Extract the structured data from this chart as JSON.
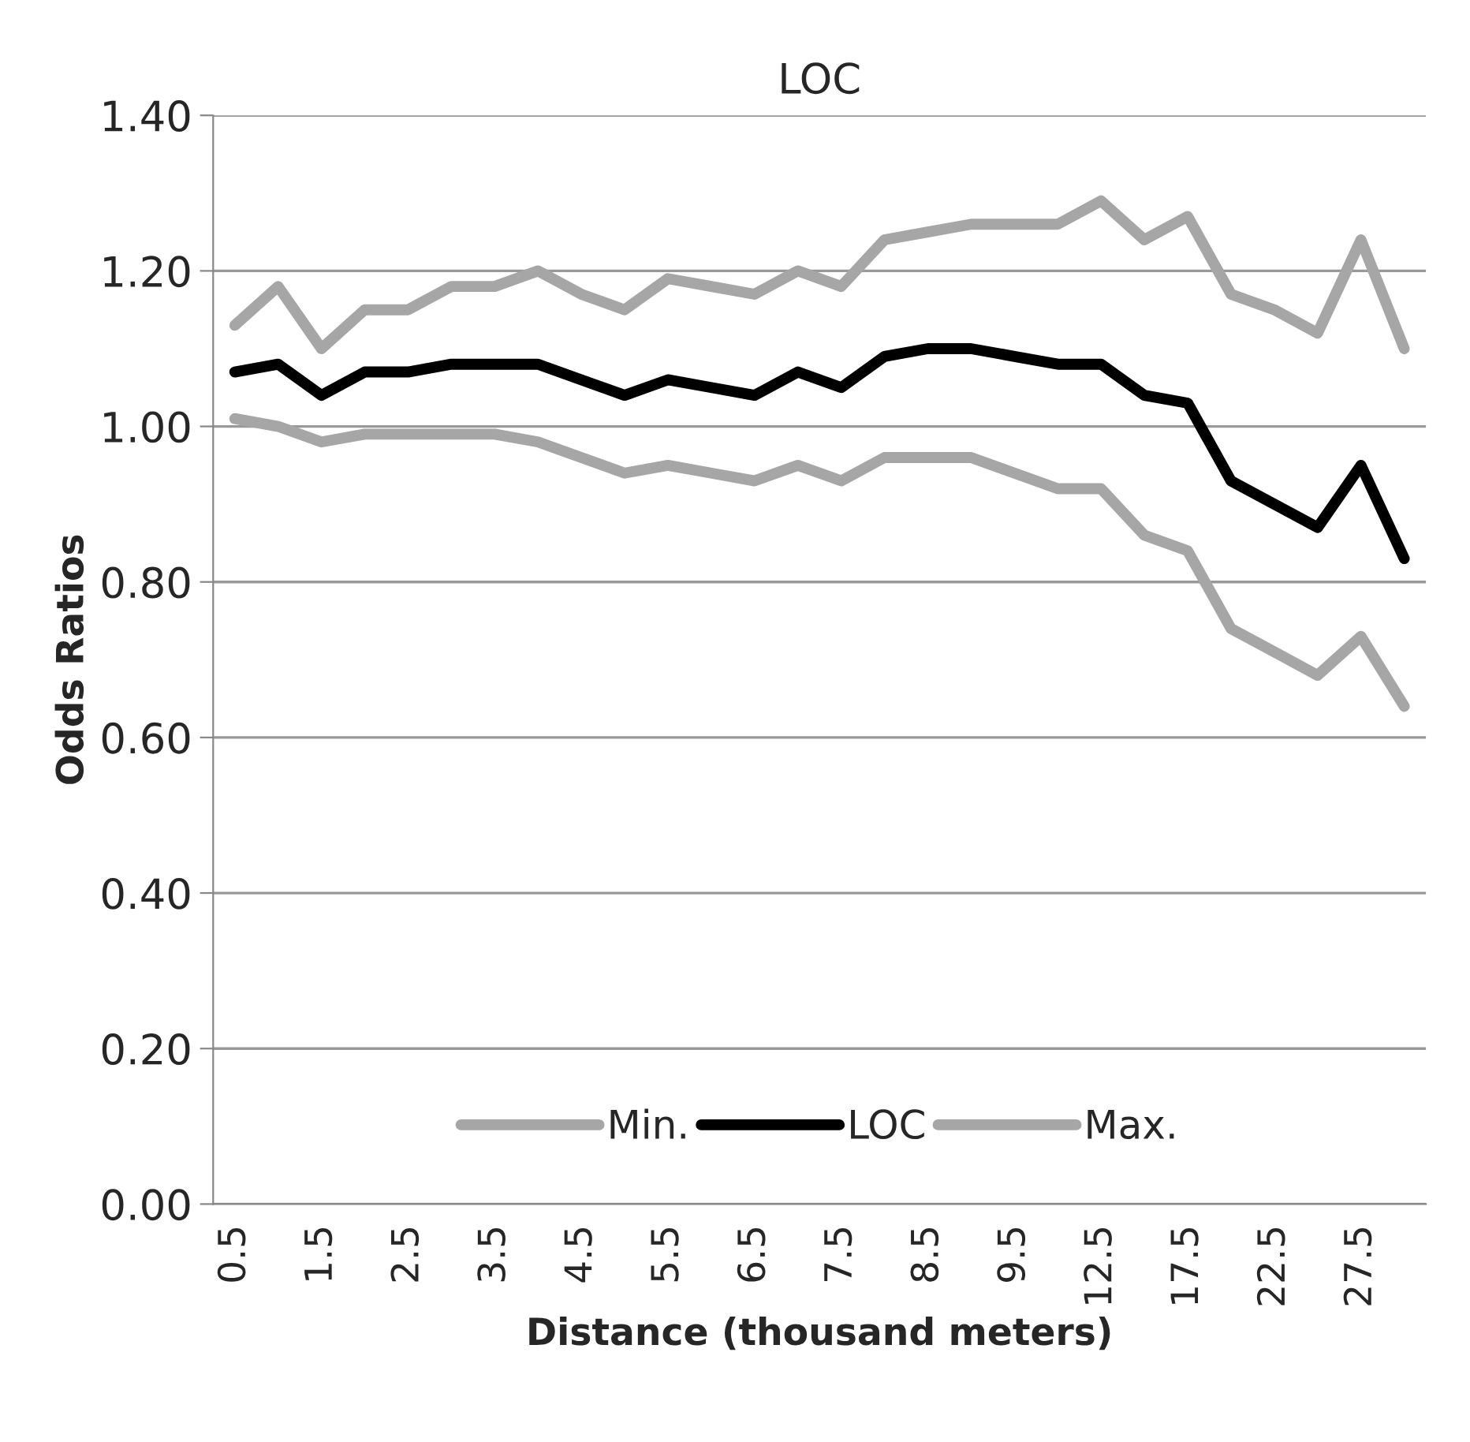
{
  "chart_data": {
    "type": "line",
    "title": "LOC",
    "xlabel": "Distance (thousand meters)",
    "ylabel": "Odds Ratios",
    "categories": [
      "0.5",
      null,
      "1.5",
      null,
      "2.5",
      null,
      "3.5",
      null,
      "4.5",
      null,
      "5.5",
      null,
      "6.5",
      null,
      "7.5",
      null,
      "8.5",
      null,
      "9.5",
      null,
      "12.5",
      null,
      "17.5",
      null,
      "22.5",
      null,
      "27.5",
      null
    ],
    "series": [
      {
        "name": "Min.",
        "color": "#a6a6a6",
        "values": [
          1.01,
          1.0,
          0.98,
          0.99,
          0.99,
          0.99,
          0.99,
          0.98,
          0.96,
          0.94,
          0.95,
          0.94,
          0.93,
          0.95,
          0.93,
          0.96,
          0.96,
          0.96,
          0.94,
          0.92,
          0.92,
          0.86,
          0.84,
          0.74,
          0.71,
          0.68,
          0.73,
          0.64
        ]
      },
      {
        "name": "LOC",
        "color": "#000000",
        "values": [
          1.07,
          1.08,
          1.04,
          1.07,
          1.07,
          1.08,
          1.08,
          1.08,
          1.06,
          1.04,
          1.06,
          1.05,
          1.04,
          1.07,
          1.05,
          1.09,
          1.1,
          1.1,
          1.09,
          1.08,
          1.08,
          1.04,
          1.03,
          0.93,
          0.9,
          0.87,
          0.95,
          0.83
        ]
      },
      {
        "name": "Max.",
        "color": "#a6a6a6",
        "values": [
          1.13,
          1.18,
          1.1,
          1.15,
          1.15,
          1.18,
          1.18,
          1.2,
          1.17,
          1.15,
          1.19,
          1.18,
          1.17,
          1.2,
          1.18,
          1.24,
          1.25,
          1.26,
          1.26,
          1.26,
          1.29,
          1.24,
          1.27,
          1.17,
          1.15,
          1.12,
          1.24,
          1.1
        ]
      }
    ],
    "ylim": [
      0,
      1.4
    ],
    "yticks": [
      {
        "value": 0,
        "label": "0.00"
      },
      {
        "value": 0.2,
        "label": "0.20"
      },
      {
        "value": 0.4,
        "label": "0.40"
      },
      {
        "value": 0.6,
        "label": "0.60"
      },
      {
        "value": 0.8,
        "label": "0.80"
      },
      {
        "value": 1.0,
        "label": "1.00"
      },
      {
        "value": 1.2,
        "label": "1.20"
      },
      {
        "value": 1.4,
        "label": "1.40"
      }
    ],
    "grid": "y",
    "legend": "bottom",
    "marker": "none",
    "line_style": "solid"
  }
}
